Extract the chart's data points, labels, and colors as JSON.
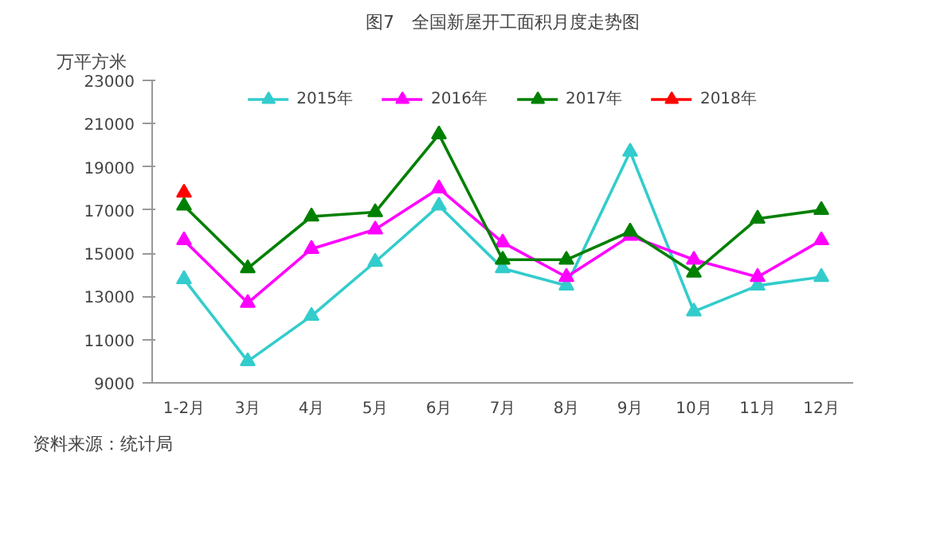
{
  "chart_data": {
    "type": "line",
    "title": "图7　全国新屋开工面积月度走势图",
    "ylabel": "万平方米",
    "categories": [
      "1-2月",
      "3月",
      "4月",
      "5月",
      "6月",
      "7月",
      "8月",
      "9月",
      "10月",
      "11月",
      "12月"
    ],
    "series": [
      {
        "name": "2015年",
        "color": "#33cccc",
        "values": [
          13800,
          10000,
          12100,
          14600,
          17200,
          14300,
          13500,
          19700,
          12300,
          13500,
          13900
        ]
      },
      {
        "name": "2016年",
        "color": "#ff00ff",
        "values": [
          15600,
          12700,
          15200,
          16100,
          18000,
          15500,
          13900,
          15800,
          14700,
          13900,
          15600
        ]
      },
      {
        "name": "2017年",
        "color": "#008000",
        "values": [
          17200,
          14300,
          16700,
          16900,
          20500,
          14700,
          14700,
          16000,
          14100,
          16600,
          17000
        ]
      },
      {
        "name": "2018年",
        "color": "#ff0000",
        "values": [
          17800,
          null,
          null,
          null,
          null,
          null,
          null,
          null,
          null,
          null,
          null
        ]
      }
    ],
    "ylim": [
      9000,
      23000
    ],
    "yticks": [
      9000,
      11000,
      13000,
      15000,
      17000,
      19000,
      21000,
      23000
    ],
    "grid": false,
    "legend": "top",
    "marker": "triangle",
    "line_style": "solid",
    "annotations": [
      "资料来源：统计局"
    ]
  }
}
